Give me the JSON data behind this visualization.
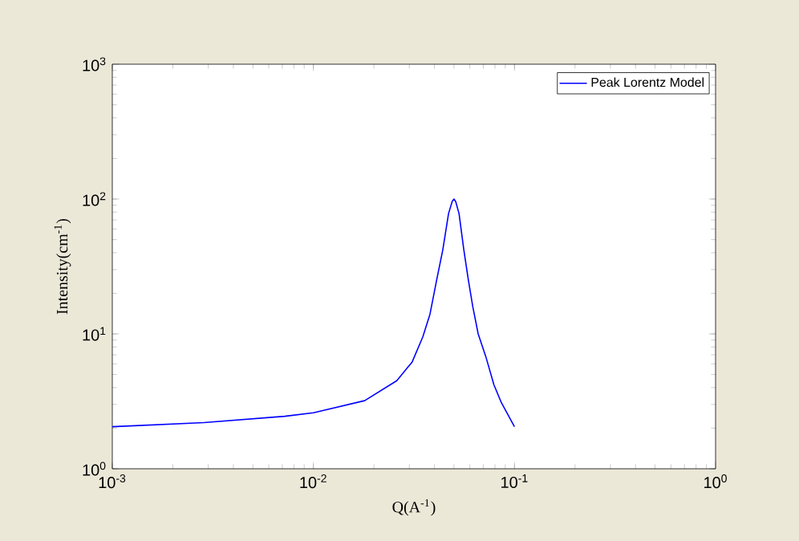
{
  "chart_data": {
    "type": "line",
    "xlabel": "Q(A$^{-1}$)",
    "ylabel": "Intensity(cm$^{-1}$)",
    "log": "xy",
    "legend": "top right",
    "grid": false,
    "marker": "none",
    "line_style": "solid",
    "xlim": [
      0.001,
      1
    ],
    "ylim": [
      1,
      1000
    ],
    "xticks": [
      {
        "value": 0.001,
        "label": "10$^{-3}$"
      },
      {
        "value": 0.01,
        "label": "10$^{-2}$"
      },
      {
        "value": 0.1,
        "label": "10$^{-1}$"
      },
      {
        "value": 1,
        "label": "10$^{0}$"
      }
    ],
    "yticks": [
      {
        "value": 1,
        "label": "10$^{0}$"
      },
      {
        "value": 10,
        "label": "10$^{1}$"
      },
      {
        "value": 100,
        "label": "10$^{2}$"
      },
      {
        "value": 1000,
        "label": "10$^{3}$"
      }
    ],
    "series": [
      {
        "name": "Peak Lorentz Model",
        "color": "#0000ff",
        "x": [
          0.001,
          0.00285,
          0.0072,
          0.01,
          0.018,
          0.026,
          0.031,
          0.035,
          0.038,
          0.041,
          0.044,
          0.047,
          0.049,
          0.05,
          0.051,
          0.053,
          0.056,
          0.059,
          0.062,
          0.066,
          0.072,
          0.079,
          0.086,
          0.1
        ],
        "values": [
          2.05,
          2.2,
          2.45,
          2.6,
          3.2,
          4.5,
          6.2,
          9.5,
          14,
          25,
          42,
          78,
          96,
          100,
          96,
          78,
          42,
          25,
          16,
          10,
          6.8,
          4.2,
          3.1,
          2.05
        ]
      }
    ]
  }
}
